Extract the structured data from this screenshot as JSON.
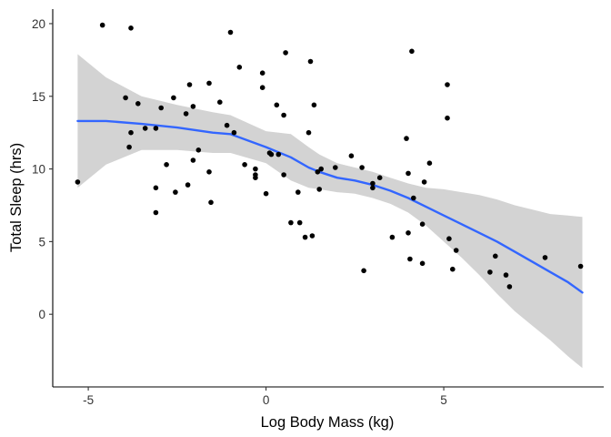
{
  "chart_data": {
    "type": "scatter",
    "xlabel": "Log Body Mass (kg)",
    "ylabel": "Total Sleep (hrs)",
    "xlim": [
      -6,
      9.5
    ],
    "ylim": [
      -5,
      21
    ],
    "xticks": [
      -5,
      0,
      5
    ],
    "yticks": [
      0,
      5,
      10,
      15,
      20
    ],
    "grid": false,
    "colors": {
      "points": "#000000",
      "smooth_line": "#3366FF",
      "confidence_band": "#d3d3d3",
      "axis": "#000000"
    },
    "points": [
      [
        -5.3,
        9.1
      ],
      [
        -4.6,
        19.9
      ],
      [
        -3.8,
        19.7
      ],
      [
        -3.95,
        14.9
      ],
      [
        -3.6,
        14.5
      ],
      [
        -3.85,
        11.5
      ],
      [
        -3.8,
        12.5
      ],
      [
        -3.4,
        12.8
      ],
      [
        -3.1,
        12.8
      ],
      [
        -3.1,
        8.7
      ],
      [
        -3.1,
        7.0
      ],
      [
        -2.95,
        14.2
      ],
      [
        -2.8,
        10.3
      ],
      [
        -2.6,
        14.9
      ],
      [
        -2.55,
        8.4
      ],
      [
        -2.25,
        13.8
      ],
      [
        -2.2,
        8.9
      ],
      [
        -2.15,
        15.8
      ],
      [
        -2.05,
        14.3
      ],
      [
        -2.05,
        10.6
      ],
      [
        -1.9,
        11.3
      ],
      [
        -1.6,
        15.9
      ],
      [
        -1.6,
        9.8
      ],
      [
        -1.55,
        7.7
      ],
      [
        -1.3,
        14.6
      ],
      [
        -1.1,
        13.0
      ],
      [
        -1.0,
        19.4
      ],
      [
        -0.9,
        12.5
      ],
      [
        -0.75,
        17.0
      ],
      [
        -0.6,
        10.3
      ],
      [
        -0.3,
        10.0
      ],
      [
        -0.3,
        9.6
      ],
      [
        -0.3,
        9.4
      ],
      [
        -0.1,
        16.6
      ],
      [
        -0.1,
        15.6
      ],
      [
        0.0,
        8.3
      ],
      [
        0.1,
        11.1
      ],
      [
        0.15,
        11.0
      ],
      [
        0.3,
        14.4
      ],
      [
        0.35,
        11.0
      ],
      [
        0.5,
        13.7
      ],
      [
        0.5,
        9.6
      ],
      [
        0.55,
        18.0
      ],
      [
        0.7,
        6.3
      ],
      [
        0.9,
        8.4
      ],
      [
        0.95,
        6.3
      ],
      [
        1.1,
        5.3
      ],
      [
        1.2,
        12.5
      ],
      [
        1.25,
        17.4
      ],
      [
        1.3,
        5.4
      ],
      [
        1.35,
        14.4
      ],
      [
        1.45,
        9.8
      ],
      [
        1.5,
        8.6
      ],
      [
        1.55,
        10.0
      ],
      [
        1.95,
        10.1
      ],
      [
        2.4,
        10.9
      ],
      [
        2.7,
        10.1
      ],
      [
        2.75,
        3.0
      ],
      [
        3.0,
        9.0
      ],
      [
        3.0,
        8.7
      ],
      [
        3.2,
        9.4
      ],
      [
        3.55,
        5.3
      ],
      [
        3.95,
        12.1
      ],
      [
        4.0,
        9.7
      ],
      [
        4.0,
        5.6
      ],
      [
        4.05,
        3.8
      ],
      [
        4.1,
        18.1
      ],
      [
        4.15,
        8.0
      ],
      [
        4.4,
        6.2
      ],
      [
        4.4,
        3.5
      ],
      [
        4.45,
        9.1
      ],
      [
        4.6,
        10.4
      ],
      [
        5.1,
        15.8
      ],
      [
        5.1,
        13.5
      ],
      [
        5.15,
        5.2
      ],
      [
        5.25,
        3.1
      ],
      [
        5.35,
        4.4
      ],
      [
        6.3,
        2.9
      ],
      [
        6.45,
        4.0
      ],
      [
        6.75,
        2.7
      ],
      [
        6.85,
        1.9
      ],
      [
        7.85,
        3.9
      ],
      [
        8.85,
        3.3
      ]
    ],
    "smooth": {
      "x": [
        -5.3,
        -4.5,
        -3.5,
        -2.5,
        -1.5,
        -1.0,
        0.0,
        0.7,
        1.2,
        1.5,
        2.0,
        2.5,
        3.0,
        3.5,
        4.0,
        4.5,
        5.0,
        5.5,
        6.0,
        6.5,
        7.0,
        7.5,
        8.0,
        8.5,
        8.9
      ],
      "y": [
        13.3,
        13.3,
        13.1,
        12.85,
        12.5,
        12.4,
        11.5,
        10.8,
        10.1,
        9.8,
        9.4,
        9.2,
        8.9,
        8.5,
        8.0,
        7.4,
        6.8,
        6.2,
        5.6,
        5.0,
        4.3,
        3.6,
        2.9,
        2.2,
        1.5
      ],
      "lower": [
        8.7,
        10.3,
        11.3,
        11.3,
        11.1,
        11.1,
        10.4,
        9.2,
        8.7,
        8.6,
        8.4,
        8.3,
        8.0,
        7.6,
        7.0,
        6.1,
        5.0,
        3.9,
        2.7,
        1.4,
        0.2,
        -0.8,
        -1.8,
        -2.9,
        -3.7
      ],
      "upper": [
        17.9,
        16.3,
        15.0,
        14.4,
        13.9,
        13.7,
        12.6,
        12.4,
        11.5,
        11.0,
        10.4,
        10.1,
        9.8,
        9.4,
        9.0,
        8.7,
        8.6,
        8.4,
        8.2,
        7.9,
        7.5,
        7.2,
        6.9,
        6.8,
        6.7
      ]
    }
  }
}
